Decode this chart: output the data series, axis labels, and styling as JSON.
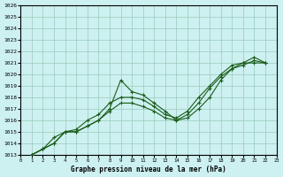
{
  "xlabel": "Graphe pression niveau de la mer (hPa)",
  "bg_color": "#cdf0f0",
  "grid_color": "#99ccbb",
  "line_color": "#1a5c1a",
  "ylim": [
    1013,
    1026
  ],
  "xlim": [
    0,
    23
  ],
  "yticks": [
    1013,
    1014,
    1015,
    1016,
    1017,
    1018,
    1019,
    1020,
    1021,
    1022,
    1023,
    1024,
    1025,
    1026
  ],
  "xticks": [
    0,
    1,
    2,
    3,
    4,
    5,
    6,
    7,
    8,
    9,
    10,
    11,
    12,
    13,
    14,
    15,
    16,
    17,
    18,
    19,
    20,
    21,
    22,
    23
  ],
  "series": [
    {
      "x": [
        1,
        2,
        3,
        4,
        5,
        6,
        7,
        8,
        9,
        10,
        11,
        12,
        13,
        14,
        15,
        16,
        17,
        18,
        19,
        20,
        21,
        22
      ],
      "y": [
        1013,
        1013.5,
        1014,
        1015,
        1015,
        1015.5,
        1016,
        1017,
        1019.5,
        1018.5,
        1018.2,
        1017.5,
        1016.8,
        1016,
        1016.2,
        1017,
        1018,
        1019.5,
        1020.5,
        1021,
        1021.5,
        1021
      ]
    },
    {
      "x": [
        1,
        2,
        3,
        4,
        5,
        6,
        7,
        8,
        9,
        10,
        11,
        12,
        13,
        14,
        15,
        16,
        17,
        18,
        19,
        20,
        21,
        22
      ],
      "y": [
        1013,
        1013.5,
        1014.5,
        1015,
        1015.2,
        1016,
        1016.5,
        1017.5,
        1018,
        1018,
        1017.8,
        1017.2,
        1016.5,
        1016.2,
        1016.8,
        1018,
        1019,
        1020,
        1020.8,
        1021,
        1021,
        1021
      ]
    },
    {
      "x": [
        1,
        2,
        3,
        4,
        5,
        6,
        7,
        8,
        9,
        10,
        11,
        12,
        13,
        14,
        15,
        16,
        17,
        18,
        19,
        20,
        21,
        22
      ],
      "y": [
        1013,
        1013.5,
        1014,
        1015,
        1015,
        1015.5,
        1016,
        1016.8,
        1017.5,
        1017.5,
        1017.2,
        1016.8,
        1016.2,
        1016,
        1016.5,
        1017.5,
        1018.8,
        1019.8,
        1020.5,
        1020.8,
        1021.2,
        1021
      ]
    }
  ]
}
